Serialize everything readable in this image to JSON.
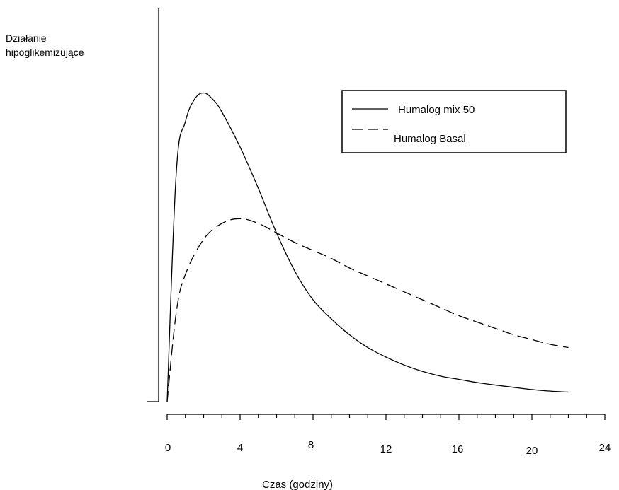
{
  "chart_data": {
    "type": "line",
    "title": "",
    "ylabel_lines": [
      "Działanie",
      "hipoglikemizujące"
    ],
    "xlabel": "Czas (godziny)",
    "xlim": [
      0,
      24
    ],
    "ylim": [
      0,
      1
    ],
    "x_ticks": [
      0,
      4,
      8,
      12,
      16,
      20,
      24
    ],
    "x_tick_labels": [
      "0",
      "4",
      "8",
      "12",
      "16",
      "20",
      "24"
    ],
    "grid": false,
    "legend_position": "top-right",
    "series": [
      {
        "name": "Humalog mix 50",
        "style": "solid",
        "color": "#000000",
        "x": [
          0,
          0.5,
          1,
          1.5,
          2,
          2.5,
          3,
          4,
          5,
          6,
          7,
          8,
          9,
          10,
          11,
          12,
          13,
          14,
          15,
          16,
          17,
          18,
          19,
          20,
          21,
          22
        ],
        "y": [
          0.0,
          0.72,
          0.88,
          0.95,
          0.97,
          0.95,
          0.91,
          0.8,
          0.67,
          0.53,
          0.41,
          0.32,
          0.26,
          0.21,
          0.17,
          0.14,
          0.115,
          0.095,
          0.08,
          0.07,
          0.06,
          0.052,
          0.045,
          0.038,
          0.033,
          0.03
        ]
      },
      {
        "name": "Humalog Basal",
        "style": "dashed",
        "color": "#000000",
        "x": [
          0,
          0.5,
          1,
          2,
          3,
          4,
          5,
          6,
          7,
          8,
          9,
          10,
          11,
          12,
          13,
          14,
          15,
          16,
          17,
          18,
          19,
          20,
          21,
          22
        ],
        "y": [
          0.0,
          0.28,
          0.4,
          0.51,
          0.56,
          0.575,
          0.56,
          0.53,
          0.5,
          0.475,
          0.45,
          0.42,
          0.395,
          0.37,
          0.345,
          0.32,
          0.295,
          0.27,
          0.25,
          0.23,
          0.21,
          0.195,
          0.18,
          0.17
        ]
      }
    ]
  }
}
